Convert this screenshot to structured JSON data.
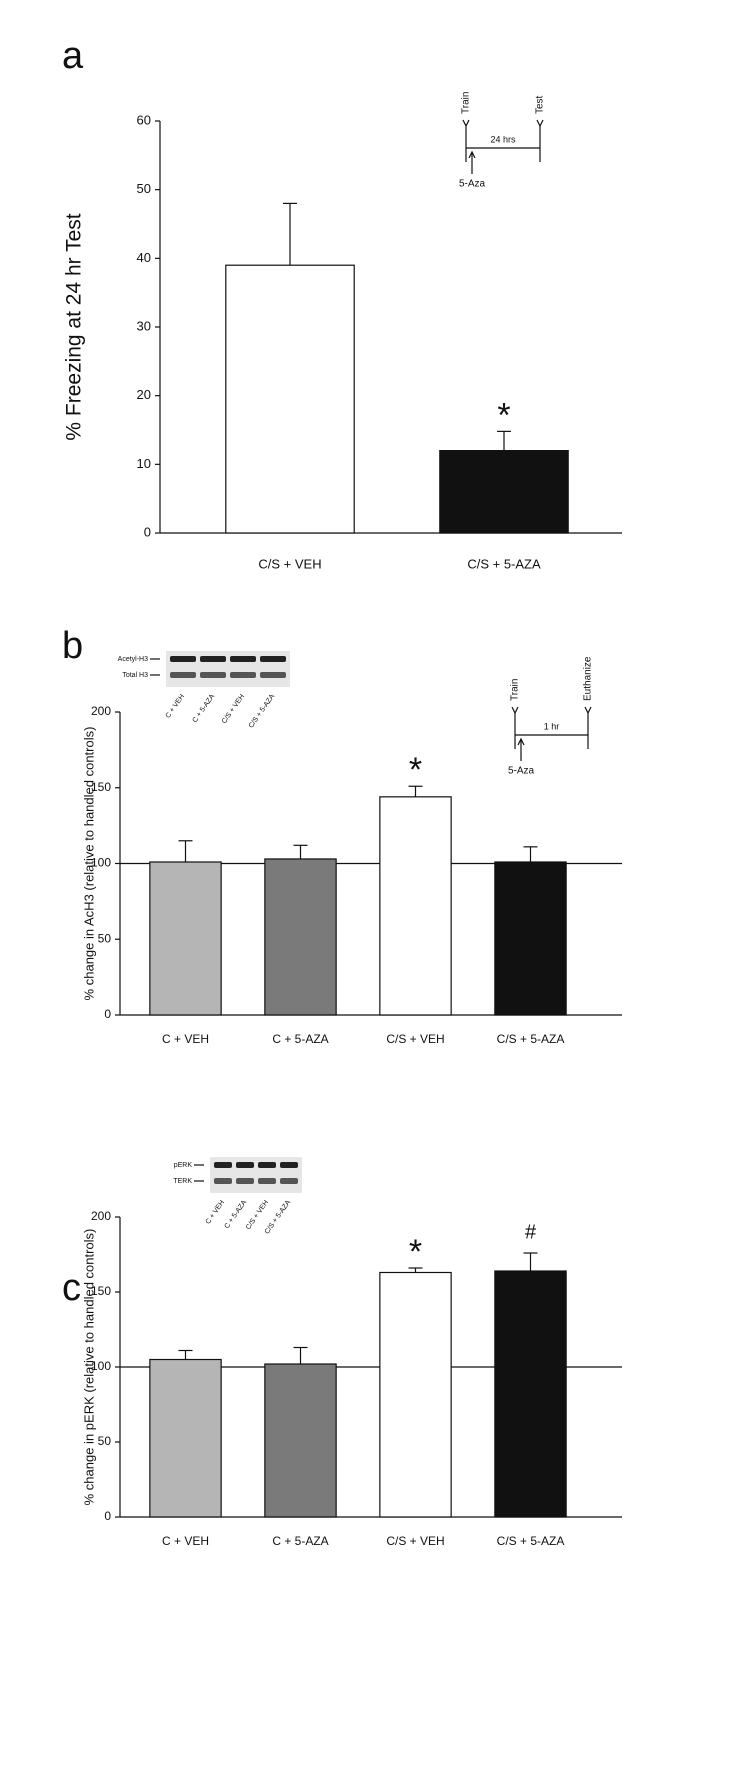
{
  "chart_data": [
    {
      "type": "bar",
      "panel": "a",
      "y_label": "% Freezing at 24 hr Test",
      "categories": [
        "C/S + VEH",
        "C/S + 5-AZA"
      ],
      "values": [
        39,
        12
      ],
      "errors": [
        9,
        2.8
      ],
      "colors": [
        "#ffffff",
        "#111111"
      ],
      "ylim": [
        0,
        60
      ],
      "yticks": [
        0,
        10,
        20,
        30,
        40,
        50,
        60
      ],
      "annotations": [
        {
          "text": "*",
          "category": "C/S + 5-AZA"
        }
      ],
      "inset_timeline": {
        "events": [
          "Train",
          "Test"
        ],
        "interval": "24 hrs",
        "injection": "5-Aza"
      }
    },
    {
      "type": "bar",
      "panel": "b",
      "y_label": "% change in AcH3 (relative to handled controls)",
      "categories": [
        "C + VEH",
        "C + 5-AZA",
        "C/S + VEH",
        "C/S + 5-AZA"
      ],
      "values": [
        101,
        103,
        144,
        101
      ],
      "errors": [
        14,
        9,
        7,
        10
      ],
      "colors": [
        "#b5b5b5",
        "#7a7a7a",
        "#ffffff",
        "#111111"
      ],
      "ylim": [
        0,
        200
      ],
      "yticks": [
        0,
        50,
        100,
        150,
        200
      ],
      "hline": 100,
      "annotations": [
        {
          "text": "*",
          "category": "C/S + VEH"
        }
      ],
      "inset_timeline": {
        "events": [
          "Train",
          "Euthanize"
        ],
        "interval": "1 hr",
        "injection": "5-Aza"
      },
      "inset_blot": {
        "rows": [
          "Acetyl-H3",
          "Total H3"
        ],
        "lanes": [
          "C + VEH",
          "C + 5-AZA",
          "C/S + VEH",
          "C/S + 5-AZA"
        ]
      }
    },
    {
      "type": "bar",
      "panel": "c",
      "y_label": "% change in pERK (relative to handled controls)",
      "categories": [
        "C + VEH",
        "C + 5-AZA",
        "C/S + VEH",
        "C/S + 5-AZA"
      ],
      "values": [
        105,
        102,
        163,
        164
      ],
      "errors": [
        6,
        11,
        3,
        12
      ],
      "colors": [
        "#b5b5b5",
        "#7a7a7a",
        "#ffffff",
        "#111111"
      ],
      "ylim": [
        0,
        200
      ],
      "yticks": [
        0,
        50,
        100,
        150,
        200
      ],
      "hline": 100,
      "annotations": [
        {
          "text": "*",
          "category": "C/S + VEH"
        },
        {
          "text": "#",
          "category": "C/S + 5-AZA"
        }
      ],
      "inset_blot": {
        "rows": [
          "pERK",
          "TERK"
        ],
        "lanes": [
          "C + VEH",
          "C + 5-AZA",
          "C/S + VEH",
          "C/S + 5-AZA"
        ]
      }
    }
  ]
}
